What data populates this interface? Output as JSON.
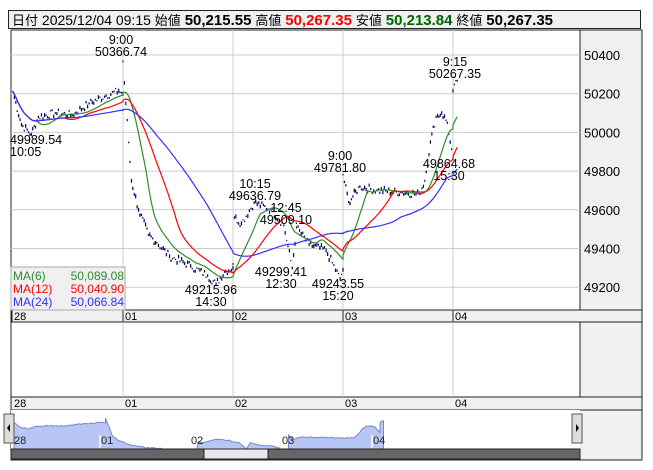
{
  "header": {
    "date_label": "日付",
    "datetime": "2025/12/04 09:15",
    "open_label": "始値",
    "open": "50,215.55",
    "high_label": "高値",
    "high": "50,267.35",
    "low_label": "安値",
    "low": "50,213.84",
    "close_label": "終値",
    "close": "50,267.35"
  },
  "colors": {
    "high": "#ff0000",
    "low": "#006400",
    "ma6": "#2e8b2e",
    "ma12": "#ff0000",
    "ma24": "#3030ff",
    "price": "#000080",
    "navigator_fill": "#b8c6f6"
  },
  "legend": [
    {
      "name": "MA(6)",
      "value": "50,089.08"
    },
    {
      "name": "MA(12)",
      "value": "50,040.90"
    },
    {
      "name": "MA(24)",
      "value": "50,066.84"
    }
  ],
  "chart_data": {
    "type": "line",
    "y_ticks": [
      "50400",
      "50200",
      "50000",
      "49800",
      "49600",
      "49400",
      "49200"
    ],
    "ylim": [
      49100,
      50450
    ],
    "x_ticks": [
      "28",
      "01",
      "02",
      "03",
      "04"
    ],
    "grid": true,
    "series": [
      {
        "days": [
          "28",
          "01",
          "02",
          "03",
          "04"
        ],
        "points": [
          [
            "28",
            "09:00",
            50210
          ],
          [
            "28",
            "09:30",
            50040
          ],
          [
            "28",
            "10:05",
            49990
          ],
          [
            "28",
            "10:30",
            50080
          ],
          [
            "28",
            "11:30",
            50100
          ],
          [
            "28",
            "12:30",
            50090
          ],
          [
            "28",
            "13:30",
            50150
          ],
          [
            "28",
            "14:30",
            50190
          ],
          [
            "28",
            "15:15",
            50215
          ],
          [
            "28",
            "15:30",
            50200
          ],
          [
            "01",
            "09:00",
            50367
          ],
          [
            "01",
            "09:10",
            50150
          ],
          [
            "01",
            "09:30",
            49750
          ],
          [
            "01",
            "09:55",
            49600
          ],
          [
            "01",
            "10:30",
            49470
          ],
          [
            "01",
            "11:00",
            49430
          ],
          [
            "01",
            "11:45",
            49360
          ],
          [
            "01",
            "13:00",
            49310
          ],
          [
            "01",
            "14:00",
            49260
          ],
          [
            "01",
            "14:30",
            49216
          ],
          [
            "01",
            "15:00",
            49280
          ],
          [
            "01",
            "15:30",
            49300
          ],
          [
            "02",
            "09:00",
            49320
          ],
          [
            "02",
            "09:05",
            49560
          ],
          [
            "02",
            "09:30",
            49530
          ],
          [
            "02",
            "10:15",
            49637
          ],
          [
            "02",
            "11:15",
            49600
          ],
          [
            "02",
            "12:00",
            49520
          ],
          [
            "02",
            "12:30",
            49299
          ],
          [
            "02",
            "12:45",
            49509
          ],
          [
            "02",
            "13:30",
            49420
          ],
          [
            "02",
            "14:30",
            49390
          ],
          [
            "02",
            "15:20",
            49243
          ],
          [
            "02",
            "15:30",
            49290
          ],
          [
            "03",
            "09:00",
            49782
          ],
          [
            "03",
            "09:20",
            49640
          ],
          [
            "03",
            "10:00",
            49720
          ],
          [
            "03",
            "11:00",
            49700
          ],
          [
            "03",
            "12:30",
            49690
          ],
          [
            "03",
            "13:30",
            49680
          ],
          [
            "03",
            "13:50",
            49750
          ],
          [
            "03",
            "14:10",
            49950
          ],
          [
            "03",
            "14:30",
            50080
          ],
          [
            "03",
            "14:50",
            50100
          ],
          [
            "03",
            "15:10",
            50050
          ],
          [
            "03",
            "15:20",
            49950
          ],
          [
            "03",
            "15:30",
            49865
          ],
          [
            "04",
            "09:00",
            50215
          ],
          [
            "04",
            "09:15",
            50267
          ]
        ]
      }
    ],
    "annotations": [
      {
        "time": "9:00",
        "value": "50366.74"
      },
      {
        "time": "10:05",
        "value": "49989.54"
      },
      {
        "time": "14:30",
        "value": "49215.96"
      },
      {
        "time": "10:15",
        "value": "49636.79"
      },
      {
        "time": "12:45",
        "value": "49509.10"
      },
      {
        "time": "12:30",
        "value": "49299.41"
      },
      {
        "time": "15:20",
        "value": "49243.55"
      },
      {
        "time": "9:00",
        "value": "49781.80"
      },
      {
        "time": "15:30",
        "value": "49864.68"
      },
      {
        "time": "9:15",
        "value": "50267.35"
      }
    ]
  }
}
